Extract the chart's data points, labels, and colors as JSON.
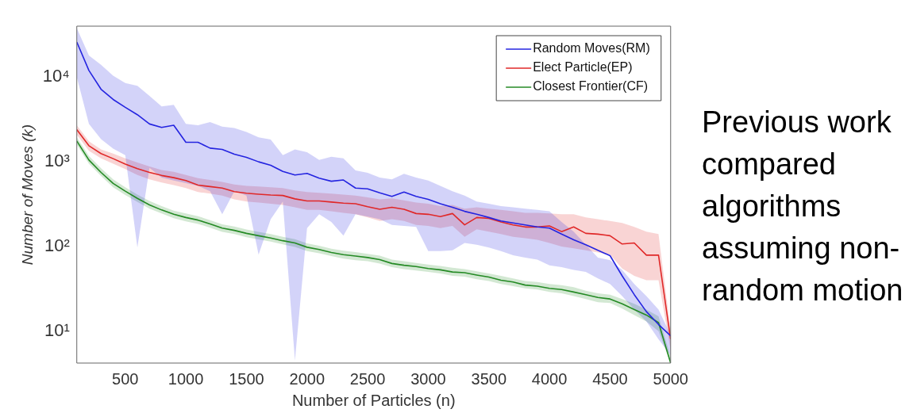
{
  "chart_data": {
    "type": "line",
    "xlabel": "Number of Particles (n)",
    "ylabel": "Number of Moves (k)",
    "log": "y",
    "grid": false,
    "legend": "top right",
    "marker": "none",
    "line_style": "solid",
    "x": [
      100,
      200,
      300,
      400,
      500,
      600,
      700,
      800,
      900,
      1000,
      1100,
      1200,
      1300,
      1400,
      1500,
      1600,
      1700,
      1800,
      1900,
      2000,
      2100,
      2200,
      2300,
      2400,
      2500,
      2600,
      2700,
      2800,
      2900,
      3000,
      3100,
      3200,
      3300,
      3400,
      3500,
      3600,
      3700,
      3800,
      3900,
      4000,
      4100,
      4200,
      4300,
      4400,
      4500,
      4600,
      4700,
      4800,
      4900,
      5000
    ],
    "xlim": [
      100,
      5000
    ],
    "xticks": [
      500,
      1000,
      1500,
      2000,
      2500,
      3000,
      3500,
      4000,
      4500,
      5000
    ],
    "ylim": [
      4.2,
      40000
    ],
    "yticks": [
      {
        "value": 10,
        "label": "10¹"
      },
      {
        "value": 100,
        "label": "10²"
      },
      {
        "value": 1000,
        "label": "10³"
      },
      {
        "value": 10000,
        "label": "10⁴"
      }
    ],
    "series": [
      {
        "name": "Random Moves(RM)",
        "color": "#2424e0",
        "values": [
          26000,
          12000,
          7200,
          5450,
          4400,
          3600,
          2800,
          2550,
          2700,
          1700,
          1700,
          1450,
          1400,
          1230,
          1130,
          1000,
          910,
          770,
          700,
          730,
          640,
          590,
          610,
          490,
          480,
          430,
          390,
          440,
          390,
          360,
          320,
          290,
          260,
          240,
          220,
          200,
          190,
          180,
          170,
          165,
          140,
          120,
          105,
          90,
          78,
          45,
          27,
          17,
          12,
          8.8
        ],
        "upper": [
          38000,
          18000,
          14000,
          10400,
          8500,
          7900,
          6000,
          4500,
          4700,
          2800,
          2700,
          2950,
          2600,
          2500,
          2250,
          1950,
          1830,
          1200,
          1400,
          1300,
          1050,
          1150,
          1100,
          790,
          740,
          650,
          620,
          720,
          650,
          600,
          520,
          450,
          400,
          340,
          320,
          300,
          290,
          280,
          270,
          260,
          195,
          150,
          105,
          74,
          69,
          53,
          36,
          26,
          18,
          9
        ],
        "lower": [
          10000,
          2800,
          1850,
          1430,
          1200,
          97,
          850,
          650,
          600,
          560,
          520,
          450,
          240,
          450,
          400,
          80,
          210,
          340,
          4.5,
          165,
          240,
          195,
          134,
          240,
          225,
          210,
          180,
          175,
          170,
          88,
          88,
          90,
          110,
          105,
          97,
          88,
          79,
          74,
          70,
          60,
          57,
          53,
          50,
          42,
          36,
          26,
          18,
          13,
          8,
          5.2
        ]
      },
      {
        "name": "Elect Particle(EP)",
        "color": "#e02828",
        "values": [
          2400,
          1550,
          1250,
          1090,
          940,
          830,
          750,
          690,
          650,
          600,
          530,
          510,
          490,
          445,
          425,
          415,
          405,
          400,
          365,
          345,
          345,
          335,
          325,
          320,
          295,
          275,
          290,
          275,
          245,
          240,
          225,
          245,
          180,
          220,
          215,
          195,
          180,
          170,
          170,
          175,
          150,
          170,
          143,
          140,
          134,
          107,
          110,
          79,
          79,
          8
        ],
        "upper": [
          2700,
          1750,
          1400,
          1250,
          1100,
          980,
          880,
          800,
          760,
          700,
          640,
          610,
          580,
          540,
          520,
          510,
          500,
          490,
          460,
          440,
          430,
          420,
          410,
          400,
          380,
          360,
          370,
          350,
          330,
          320,
          300,
          310,
          280,
          290,
          280,
          270,
          260,
          250,
          250,
          245,
          240,
          240,
          220,
          210,
          200,
          190,
          170,
          150,
          140,
          10
        ],
        "lower": [
          2100,
          1350,
          1100,
          950,
          820,
          700,
          620,
          570,
          530,
          490,
          440,
          420,
          400,
          360,
          340,
          330,
          320,
          310,
          290,
          270,
          270,
          260,
          250,
          240,
          220,
          200,
          210,
          200,
          180,
          175,
          165,
          175,
          130,
          160,
          150,
          140,
          130,
          125,
          120,
          110,
          100,
          95,
          90,
          85,
          80,
          55,
          45,
          40,
          40,
          6
        ]
      },
      {
        "name": "Closest Frontier(CF)",
        "color": "#248a24",
        "values": [
          1760,
          1050,
          750,
          555,
          450,
          370,
          310,
          270,
          240,
          220,
          205,
          185,
          165,
          155,
          143,
          134,
          126,
          117,
          110,
          98,
          92,
          85,
          80,
          77,
          74,
          70,
          63,
          60,
          58,
          55,
          53,
          50,
          49,
          46,
          43.5,
          40,
          38,
          35,
          34,
          32,
          31,
          29,
          27,
          25,
          24,
          21,
          18,
          15.5,
          12.6,
          4.2
        ],
        "upper": [
          1950,
          1170,
          840,
          620,
          500,
          410,
          345,
          300,
          265,
          245,
          228,
          205,
          183,
          172,
          159,
          149,
          140,
          130,
          122,
          109,
          102,
          94,
          89,
          86,
          82,
          78,
          70,
          67,
          64,
          61,
          59,
          56,
          54,
          51,
          48,
          45,
          42,
          39,
          38,
          36,
          35,
          33,
          30,
          28,
          27,
          24,
          21,
          18,
          15,
          5
        ],
        "lower": [
          1600,
          950,
          680,
          500,
          405,
          335,
          280,
          245,
          216,
          198,
          185,
          167,
          149,
          140,
          129,
          121,
          114,
          106,
          99,
          88,
          83,
          77,
          72,
          69,
          67,
          63,
          57,
          54,
          52,
          50,
          48,
          45,
          44,
          41,
          39,
          36,
          34,
          32,
          31,
          29,
          28,
          26,
          24,
          22,
          21.5,
          18.5,
          15.5,
          13,
          10,
          4.2
        ]
      }
    ],
    "annotations": [
      "Previous work compared algorithms assuming non-random motion"
    ]
  }
}
